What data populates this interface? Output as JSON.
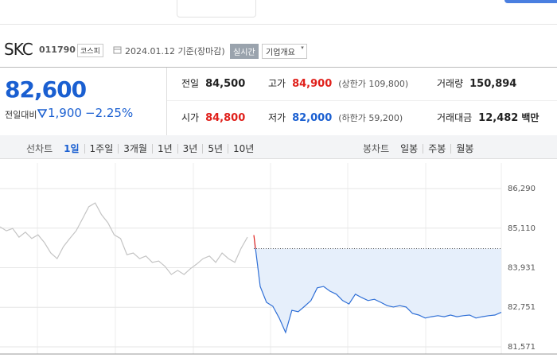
{
  "header": {
    "name": "SKC",
    "code": "011790",
    "market": "코스피",
    "date": "2024.01.12 기준(장마감)",
    "realtime": "실시간",
    "overview": "기업개요"
  },
  "price": {
    "current": "82,600",
    "change_label": "전일대비",
    "change": "1,900",
    "change_pct": "−2.25%"
  },
  "stats": [
    {
      "label": "전일",
      "value": "84,500"
    },
    {
      "label": "고가",
      "value": "84,900",
      "note": "(상한가 109,800)",
      "color": "#e0201b"
    },
    {
      "label": "거래량",
      "value": "150,894"
    },
    {
      "label": "시가",
      "value": "84,800",
      "color": "#e0201b"
    },
    {
      "label": "저가",
      "value": "82,000",
      "note": "(하한가 59,200)",
      "color": "#1a5fd1"
    },
    {
      "label": "거래대금",
      "value": "12,482",
      "unit": "백만"
    }
  ],
  "tabs": {
    "line_chart": {
      "label": "선차트",
      "options": [
        "1일",
        "1주일",
        "3개월",
        "1년",
        "3년",
        "5년",
        "10년"
      ],
      "selected": 0
    },
    "candle_chart": {
      "label": "봉차트",
      "options": [
        "일봉",
        "주봉",
        "월봉"
      ]
    }
  },
  "chart_data": {
    "type": "line",
    "ylim": [
      81571,
      86290
    ],
    "yticks": [
      {
        "value": 86290,
        "label": "86,290"
      },
      {
        "value": 85110,
        "label": "85,110"
      },
      {
        "value": 83931,
        "label": "83,931"
      },
      {
        "value": 82751,
        "label": "82,751"
      },
      {
        "value": 81571,
        "label": "81,571"
      }
    ],
    "grid": true,
    "baseline": 84500,
    "series": [
      {
        "color": "#c4c4c4",
        "values": [
          85150,
          85030,
          85100,
          84840,
          84990,
          84800,
          84910,
          84680,
          84370,
          84200,
          84560,
          84800,
          85030,
          85390,
          85750,
          85860,
          85510,
          85270,
          84910,
          84800,
          84320,
          84370,
          84200,
          84280,
          84090,
          84130,
          83970,
          83730,
          83850,
          83730,
          83900,
          84040,
          84200,
          84280,
          84090,
          84370,
          84200,
          84090,
          84510,
          84840,
          null,
          null,
          null,
          null,
          null,
          null,
          null,
          null,
          null,
          null,
          null,
          null,
          null,
          null,
          null,
          null,
          null,
          null,
          null,
          null,
          null,
          null,
          null,
          null,
          null,
          null,
          null,
          null,
          null,
          null,
          null,
          null,
          null,
          null,
          null,
          null,
          null,
          null,
          null,
          null
        ]
      },
      {
        "color": "#2f6fd6",
        "up_color": "#e0201b",
        "fill": "#e6effb",
        "values": [
          null,
          null,
          null,
          null,
          null,
          null,
          null,
          null,
          null,
          null,
          null,
          null,
          null,
          null,
          null,
          null,
          null,
          null,
          null,
          null,
          null,
          null,
          null,
          null,
          null,
          null,
          null,
          null,
          null,
          null,
          null,
          null,
          null,
          null,
          null,
          null,
          null,
          null,
          null,
          null,
          84900,
          83370,
          82900,
          82780,
          82430,
          82000,
          82660,
          82620,
          82780,
          82950,
          83330,
          83370,
          83230,
          83140,
          82950,
          82850,
          83140,
          83040,
          82950,
          82990,
          82900,
          82800,
          82760,
          82800,
          82760,
          82570,
          82520,
          82430,
          82470,
          82500,
          82470,
          82520,
          82470,
          82500,
          82520,
          82430,
          82470,
          82500,
          82520,
          82600
        ]
      }
    ]
  }
}
